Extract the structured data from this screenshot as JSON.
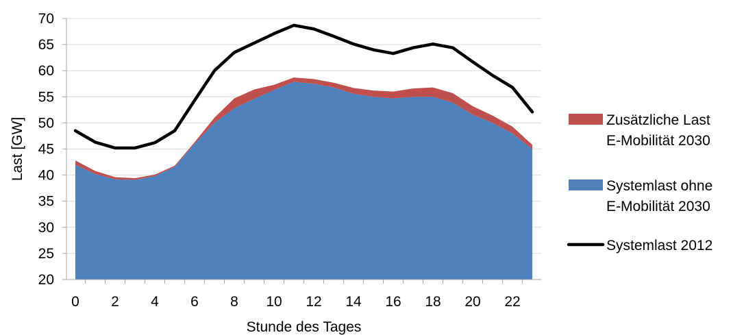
{
  "chart_data": {
    "type": "area",
    "xlabel": "Stunde des Tages",
    "ylabel": "Last [GW]",
    "x": [
      0,
      1,
      2,
      3,
      4,
      5,
      6,
      7,
      8,
      9,
      10,
      11,
      12,
      13,
      14,
      15,
      16,
      17,
      18,
      19,
      20,
      21,
      22,
      23
    ],
    "xticks": [
      "0",
      "2",
      "4",
      "6",
      "8",
      "10",
      "12",
      "14",
      "16",
      "18",
      "20",
      "22"
    ],
    "ylim": [
      20,
      70
    ],
    "yticks": [
      "20",
      "25",
      "30",
      "35",
      "40",
      "45",
      "50",
      "55",
      "60",
      "65",
      "70"
    ],
    "grid": true,
    "legend_position": "right",
    "series": [
      {
        "name": "Systemlast ohne E-Mobilität 2030",
        "kind": "area",
        "color": "#4f81bd",
        "values": [
          42.0,
          40.2,
          39.2,
          39.1,
          39.8,
          41.6,
          46.0,
          50.0,
          52.8,
          54.6,
          56.3,
          57.9,
          57.5,
          56.8,
          55.6,
          55.0,
          54.7,
          55.0,
          55.0,
          53.9,
          51.6,
          50.0,
          48.0,
          45.0
        ]
      },
      {
        "name": "Zusätzliche Last E-Mobilität  2030",
        "kind": "stacked-area",
        "color": "#c0504d",
        "values": [
          0.8,
          0.6,
          0.4,
          0.3,
          0.3,
          0.2,
          0.3,
          1.0,
          1.9,
          1.8,
          1.0,
          0.8,
          0.9,
          0.9,
          1.1,
          1.2,
          1.3,
          1.6,
          1.8,
          1.8,
          1.6,
          1.4,
          1.3,
          0.8
        ]
      },
      {
        "name": "Systemlast 2012",
        "kind": "line",
        "color": "#000000",
        "values": [
          48.5,
          46.3,
          45.2,
          45.2,
          46.2,
          48.5,
          54.3,
          60.0,
          63.5,
          65.3,
          67.1,
          68.7,
          68.0,
          66.6,
          65.1,
          64.0,
          63.3,
          64.4,
          65.1,
          64.4,
          61.7,
          59.1,
          56.8,
          52.1
        ]
      }
    ],
    "legend": [
      {
        "series": 1,
        "lines": [
          "Zusätzliche Last",
          "E-Mobilität  2030"
        ]
      },
      {
        "series": 0,
        "lines": [
          "Systemlast ohne",
          "E-Mobilität 2030"
        ]
      },
      {
        "series": 2,
        "lines": [
          "Systemlast 2012"
        ]
      }
    ]
  }
}
